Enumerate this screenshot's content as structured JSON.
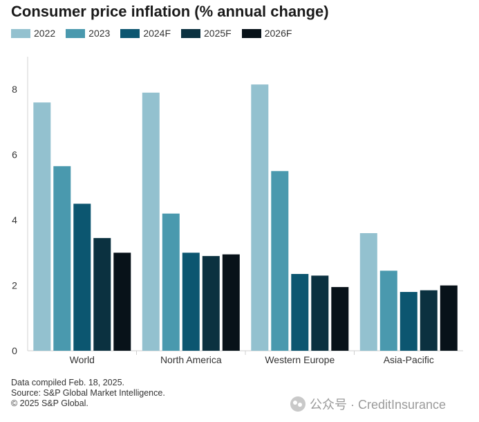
{
  "chart_data": {
    "type": "bar",
    "title": "Consumer price inflation (% annual change)",
    "xlabel": "",
    "ylabel": "",
    "categories": [
      "World",
      "North America",
      "Western Europe",
      "Asia-Pacific"
    ],
    "series": [
      {
        "name": "2022",
        "color": "#93c1cf",
        "values": [
          7.6,
          7.9,
          8.15,
          3.6
        ]
      },
      {
        "name": "2023",
        "color": "#4a99ae",
        "values": [
          5.65,
          4.2,
          5.5,
          2.45
        ]
      },
      {
        "name": "2024F",
        "color": "#0c5670",
        "values": [
          4.5,
          3.0,
          2.35,
          1.8
        ]
      },
      {
        "name": "2025F",
        "color": "#0b3140",
        "values": [
          3.45,
          2.9,
          2.3,
          1.85
        ]
      },
      {
        "name": "2026F",
        "color": "#081219",
        "values": [
          3.0,
          2.95,
          1.95,
          2.0
        ]
      }
    ],
    "yticks": [
      0,
      2,
      4,
      6,
      8
    ],
    "ylim": [
      0,
      9
    ],
    "grid": false,
    "legend_position": "top-left"
  },
  "footnotes": [
    "Data compiled Feb. 18, 2025.",
    "Source: S&P Global Market Intelligence.",
    "© 2025 S&P Global."
  ],
  "watermark": {
    "text": "公众号 · CreditInsurance",
    "icon": "wechat-icon"
  }
}
